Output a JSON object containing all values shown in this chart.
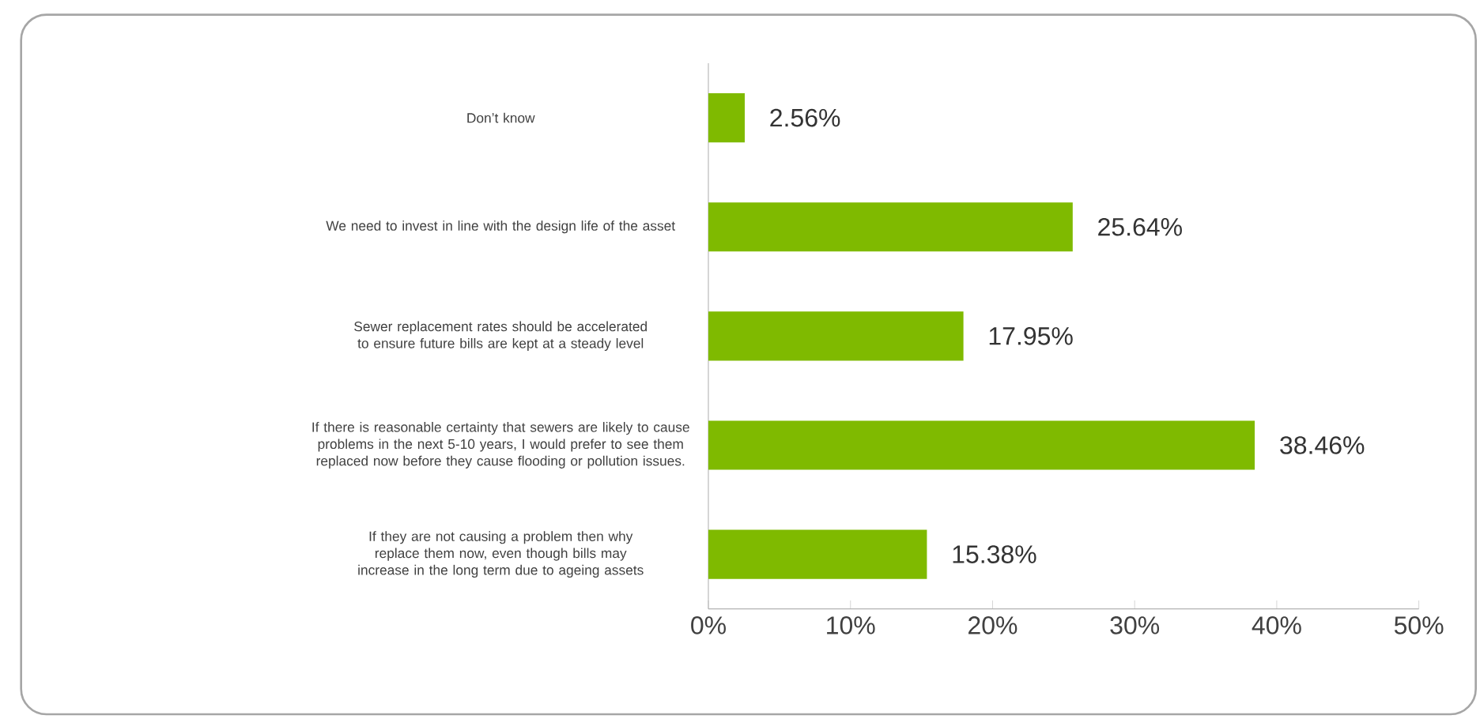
{
  "chart_data": {
    "type": "bar",
    "orientation": "horizontal",
    "categories": [
      "Don’t know",
      "We need to invest in line with the design life of the asset",
      "Sewer replacement rates should be accelerated to ensure future bills are kept at a steady level",
      "If there is reasonable certainty that sewers are likely to cause problems in the next 5-10 years, I would prefer to see them replaced now before they cause flooding or pollution issues.",
      "If they are not causing a problem then why replace them now, even though bills may increase in the long term due to ageing assets"
    ],
    "values": [
      2.56,
      25.64,
      17.95,
      38.46,
      15.38
    ],
    "value_labels": [
      "2.56%",
      "25.64%",
      "17.95%",
      "38.46%",
      "15.38%"
    ],
    "color": "#7fba00",
    "xlim": [
      0,
      50
    ],
    "xticks": [
      {
        "value": 0,
        "label": "0%"
      },
      {
        "value": 10,
        "label": "10%"
      },
      {
        "value": 20,
        "label": "20%"
      },
      {
        "value": 30,
        "label": "30%"
      },
      {
        "value": 40,
        "label": "40%"
      },
      {
        "value": 50,
        "label": "50%"
      }
    ],
    "grid": false
  }
}
